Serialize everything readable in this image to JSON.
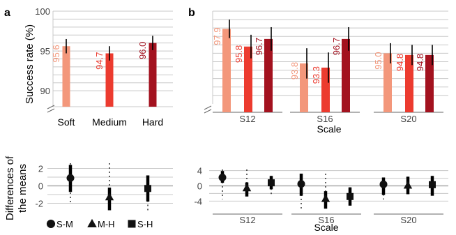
{
  "panel_labels": {
    "a": "a",
    "b": "b"
  },
  "colors": {
    "soft": "#f3977b",
    "medium": "#ec3b2f",
    "hard": "#a3121f",
    "grid": "#c8c8c8",
    "marker": "#111111"
  },
  "chart_data": [
    {
      "id": "a-top",
      "type": "bar",
      "title": "",
      "xlabel": "",
      "ylabel": "Success rate (%)",
      "ylim": [
        88,
        100
      ],
      "axis_break": true,
      "yticks": [
        90,
        95,
        100
      ],
      "grid": true,
      "categories": [
        "Soft",
        "Medium",
        "Hard"
      ],
      "series": [
        {
          "values": [
            95.6,
            94.7,
            96.0
          ],
          "error": [
            0.9,
            0.9,
            0.9
          ],
          "colors": [
            "#f3977b",
            "#ec3b2f",
            "#a3121f"
          ]
        }
      ],
      "data_labels": [
        "95.6",
        "94.7",
        "96.0"
      ]
    },
    {
      "id": "b-top",
      "type": "bar",
      "title": "",
      "xlabel": "Scale",
      "ylabel": "",
      "ylim": [
        88,
        100
      ],
      "axis_break": true,
      "grid": true,
      "categories": [
        "S12",
        "S16",
        "S20"
      ],
      "series": [
        {
          "name": "Soft",
          "values": [
            97.9,
            93.8,
            95.0
          ],
          "error": [
            1.1,
            1.8,
            1.2
          ],
          "color": "#f3977b"
        },
        {
          "name": "Medium",
          "values": [
            95.8,
            93.3,
            94.8
          ],
          "error": [
            1.4,
            1.8,
            1.2
          ],
          "color": "#ec3b2f"
        },
        {
          "name": "Hard",
          "values": [
            96.7,
            96.7,
            94.8
          ],
          "error": [
            1.4,
            1.4,
            1.2
          ],
          "color": "#a3121f"
        }
      ],
      "data_labels": [
        [
          "97.9",
          "95.8",
          "96.7"
        ],
        [
          "93.8",
          "93.3",
          "96.7"
        ],
        [
          "95.0",
          "94.8",
          "94.8"
        ]
      ]
    },
    {
      "id": "a-bottom",
      "type": "scatter",
      "title": "",
      "xlabel": "",
      "ylabel": "Differences of the means",
      "ylim": [
        -3.4,
        3.4
      ],
      "yticks": [
        -2,
        0,
        2
      ],
      "grid": true,
      "legend": [
        "S-M",
        "M-H",
        "S-H"
      ],
      "legend_position": "bottom",
      "series": [
        {
          "name": "S-M",
          "marker": "circle",
          "mean": 0.9,
          "ci": [
            -0.7,
            2.4
          ],
          "range": [
            -2.0,
            2.6
          ]
        },
        {
          "name": "M-H",
          "marker": "triangle",
          "mean": -1.3,
          "ci": [
            -2.8,
            -0.2
          ],
          "range": [
            -2.8,
            2.6
          ]
        },
        {
          "name": "S-H",
          "marker": "square",
          "mean": -0.3,
          "ci": [
            -1.8,
            1.2
          ],
          "range": [
            -2.8,
            1.2
          ]
        }
      ]
    },
    {
      "id": "b-bottom",
      "type": "scatter",
      "title": "",
      "xlabel": "Scale",
      "ylabel": "",
      "ylim": [
        -6.5,
        6.5
      ],
      "yticks": [
        -4,
        0,
        4
      ],
      "grid": true,
      "categories": [
        "S12",
        "S16",
        "S20"
      ],
      "groups": [
        {
          "category": "S12",
          "points": [
            {
              "name": "S-M",
              "marker": "circle",
              "mean": 2.2,
              "ci": [
                0.8,
                3.9
              ],
              "range": [
                -3.5,
                4.3
              ]
            },
            {
              "name": "M-H",
              "marker": "triangle",
              "mean": -0.6,
              "ci": [
                -2.8,
                0.9
              ],
              "range": [
                -2.8,
                4.3
              ]
            },
            {
              "name": "S-H",
              "marker": "square",
              "mean": 0.8,
              "ci": [
                -0.9,
                2.6
              ],
              "range": [
                -2.4,
                2.6
              ]
            }
          ]
        },
        {
          "category": "S16",
          "points": [
            {
              "name": "S-M",
              "marker": "circle",
              "mean": 0.5,
              "ci": [
                -2.6,
                3.2
              ],
              "range": [
                -6.3,
                3.2
              ]
            },
            {
              "name": "M-H",
              "marker": "triangle",
              "mean": -3.4,
              "ci": [
                -6.0,
                -1.4
              ],
              "range": [
                -6.0,
                3.2
              ]
            },
            {
              "name": "S-H",
              "marker": "square",
              "mean": -2.8,
              "ci": [
                -5.2,
                -0.4
              ],
              "range": [
                -5.2,
                -0.4
              ]
            }
          ]
        },
        {
          "category": "S20",
          "points": [
            {
              "name": "S-M",
              "marker": "circle",
              "mean": 0.4,
              "ci": [
                -2.4,
                2.2
              ],
              "range": [
                -3.6,
                2.2
              ]
            },
            {
              "name": "M-H",
              "marker": "triangle",
              "mean": 0.1,
              "ci": [
                -2.2,
                2.4
              ],
              "range": [
                -2.2,
                2.4
              ]
            },
            {
              "name": "S-H",
              "marker": "square",
              "mean": 0.3,
              "ci": [
                -2.6,
                2.6
              ],
              "range": [
                -2.6,
                2.6
              ]
            }
          ]
        }
      ]
    }
  ]
}
